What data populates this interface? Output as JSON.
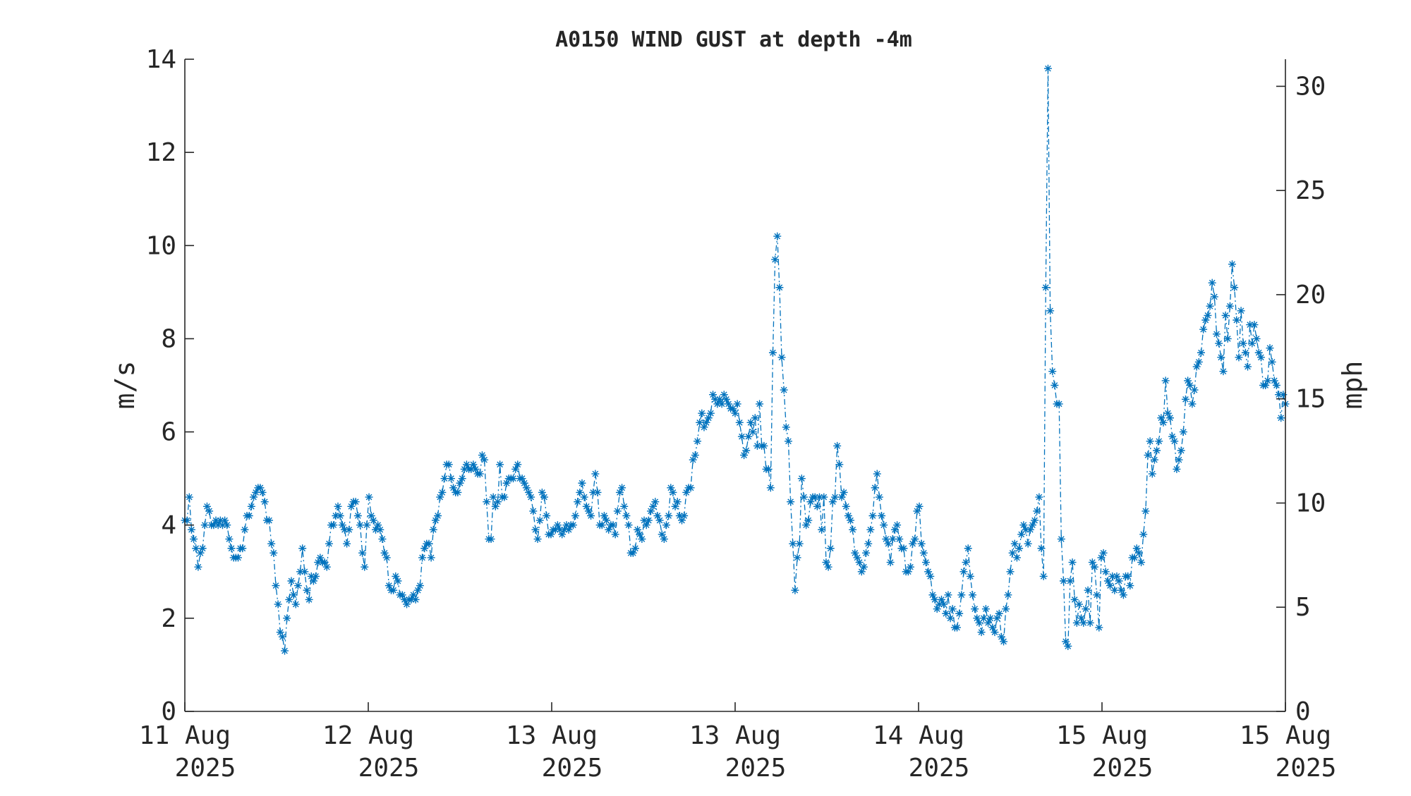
{
  "chart_data": {
    "type": "line",
    "title": "A0150 WIND GUST at depth -4m",
    "ylabel": "m/s",
    "ylabel_right": "mph",
    "ylim": [
      0,
      14
    ],
    "yticks": [
      0,
      2,
      4,
      6,
      8,
      10,
      12,
      14
    ],
    "y2lim": [
      0,
      31.3
    ],
    "y2ticks": [
      0,
      5,
      10,
      15,
      20,
      25,
      30
    ],
    "x_range": [
      "2025-08-11 00:00",
      "2025-08-15 00:00"
    ],
    "xtick_labels": [
      [
        "11 Aug",
        "2025"
      ],
      [
        "12 Aug",
        "2025"
      ],
      [
        "13 Aug",
        "2025"
      ],
      [
        "13 Aug",
        "2025"
      ],
      [
        "14 Aug",
        "2025"
      ],
      [
        "15 Aug",
        "2025"
      ],
      [
        "15 Aug",
        "2025"
      ]
    ],
    "grid": false,
    "marker": "asterisk",
    "line_style": "dash-dot",
    "color": "#0072BD",
    "series": [
      {
        "values": [
          4.1,
          4.1,
          4.6,
          3.9,
          3.7,
          3.5,
          3.1,
          3.4,
          3.5,
          4.0,
          4.4,
          4.3,
          4.0,
          4.0,
          4.1,
          4.0,
          4.1,
          4.0,
          4.1,
          4.0,
          3.7,
          3.5,
          3.3,
          3.3,
          3.3,
          3.5,
          3.5,
          3.9,
          4.2,
          4.2,
          4.4,
          4.6,
          4.7,
          4.8,
          4.8,
          4.7,
          4.5,
          4.1,
          4.1,
          3.6,
          3.4,
          2.7,
          2.3,
          1.7,
          1.6,
          1.3,
          2.0,
          2.4,
          2.8,
          2.5,
          2.3,
          2.7,
          3.0,
          3.5,
          3.0,
          2.6,
          2.4,
          2.9,
          2.8,
          2.9,
          3.2,
          3.3,
          3.2,
          3.2,
          3.1,
          3.6,
          4.0,
          4.0,
          4.2,
          4.4,
          4.2,
          4.0,
          3.9,
          3.6,
          3.9,
          4.4,
          4.5,
          4.5,
          4.2,
          4.0,
          3.4,
          3.1,
          4.0,
          4.6,
          4.2,
          4.1,
          3.9,
          4.0,
          3.9,
          3.7,
          3.4,
          3.3,
          2.7,
          2.6,
          2.6,
          2.9,
          2.8,
          2.5,
          2.5,
          2.4,
          2.3,
          2.4,
          2.4,
          2.5,
          2.4,
          2.6,
          2.7,
          3.3,
          3.5,
          3.6,
          3.6,
          3.3,
          3.9,
          4.1,
          4.2,
          4.6,
          4.7,
          5.0,
          5.3,
          5.3,
          5.0,
          4.8,
          4.7,
          4.7,
          4.9,
          5.0,
          5.2,
          5.3,
          5.2,
          5.2,
          5.3,
          5.2,
          5.1,
          5.1,
          5.5,
          5.4,
          4.5,
          3.7,
          3.7,
          4.6,
          4.4,
          4.5,
          5.3,
          4.6,
          4.6,
          4.9,
          5.0,
          5.0,
          5.0,
          5.2,
          5.3,
          5.0,
          5.0,
          4.9,
          4.8,
          4.7,
          4.6,
          4.3,
          3.9,
          3.7,
          4.1,
          4.7,
          4.6,
          4.2,
          3.8,
          3.8,
          3.9,
          3.9,
          4.0,
          3.9,
          3.8,
          3.9,
          4.0,
          3.9,
          4.0,
          4.0,
          4.2,
          4.5,
          4.7,
          4.9,
          4.6,
          4.4,
          4.3,
          4.2,
          4.7,
          5.1,
          4.7,
          4.0,
          4.0,
          4.2,
          4.1,
          3.9,
          4.0,
          4.0,
          3.8,
          4.3,
          4.7,
          4.8,
          4.4,
          4.2,
          4.0,
          3.4,
          3.4,
          3.5,
          3.9,
          3.8,
          3.7,
          4.1,
          4.0,
          4.1,
          4.3,
          4.4,
          4.5,
          4.2,
          4.1,
          3.8,
          3.7,
          4.0,
          4.2,
          4.8,
          4.7,
          4.4,
          4.5,
          4.2,
          4.1,
          4.2,
          4.7,
          4.8,
          4.8,
          5.4,
          5.5,
          5.8,
          6.2,
          6.4,
          6.1,
          6.2,
          6.3,
          6.4,
          6.8,
          6.7,
          6.6,
          6.7,
          6.6,
          6.8,
          6.7,
          6.6,
          6.5,
          6.5,
          6.4,
          6.6,
          6.2,
          5.9,
          5.5,
          5.6,
          5.9,
          6.2,
          6.0,
          6.3,
          5.7,
          6.6,
          5.7,
          5.7,
          5.2,
          5.2,
          4.8,
          7.7,
          9.7,
          10.2,
          9.1,
          7.6,
          6.9,
          6.1,
          5.8,
          4.5,
          3.6,
          2.6,
          3.3,
          3.6,
          5.0,
          4.6,
          4.0,
          4.1,
          4.5,
          4.6,
          4.6,
          4.4,
          4.6,
          3.9,
          4.6,
          3.2,
          3.1,
          3.5,
          4.5,
          4.6,
          5.7,
          5.3,
          4.6,
          4.7,
          4.4,
          4.2,
          4.1,
          3.9,
          3.4,
          3.3,
          3.2,
          3.0,
          3.1,
          3.4,
          3.6,
          3.9,
          4.2,
          4.8,
          5.1,
          4.6,
          4.2,
          4.0,
          3.7,
          3.6,
          3.2,
          3.7,
          3.9,
          4.0,
          3.7,
          3.5,
          3.5,
          3.0,
          3.0,
          3.1,
          3.6,
          3.7,
          4.3,
          4.4,
          3.6,
          3.4,
          3.2,
          3.0,
          2.9,
          2.5,
          2.4,
          2.2,
          2.3,
          2.4,
          2.3,
          2.1,
          2.5,
          2.0,
          2.2,
          1.8,
          1.8,
          2.1,
          2.5,
          3.0,
          3.2,
          3.5,
          2.9,
          2.5,
          2.2,
          2.0,
          1.9,
          1.7,
          2.0,
          2.2,
          1.9,
          2.0,
          1.8,
          1.7,
          2.0,
          2.1,
          1.6,
          1.5,
          2.2,
          2.5,
          3.0,
          3.4,
          3.6,
          3.3,
          3.5,
          3.8,
          4.0,
          3.9,
          3.6,
          3.9,
          4.0,
          4.1,
          4.3,
          4.6,
          3.5,
          2.9,
          9.1,
          13.8,
          8.6,
          7.3,
          7.0,
          6.6,
          6.6,
          3.7,
          2.8,
          1.5,
          1.4,
          2.8,
          3.2,
          2.4,
          1.9,
          2.3,
          2.0,
          1.9,
          2.2,
          2.6,
          1.9,
          3.2,
          3.1,
          2.5,
          1.8,
          3.3,
          3.4,
          3.0,
          2.8,
          2.7,
          2.9,
          2.6,
          2.9,
          2.8,
          2.6,
          2.5,
          2.9,
          2.9,
          2.7,
          3.3,
          3.3,
          3.5,
          3.4,
          3.2,
          3.8,
          4.3,
          5.5,
          5.8,
          5.1,
          5.4,
          5.6,
          5.8,
          6.3,
          6.2,
          7.1,
          6.4,
          6.3,
          5.9,
          5.8,
          5.2,
          5.4,
          5.6,
          6.0,
          6.7,
          7.1,
          7.0,
          6.6,
          6.9,
          7.4,
          7.5,
          7.7,
          8.2,
          8.4,
          8.5,
          8.7,
          9.2,
          8.9,
          8.1,
          7.9,
          7.6,
          7.3,
          8.5,
          8.0,
          8.7,
          9.6,
          9.1,
          8.4,
          7.6,
          8.6,
          7.9,
          7.7,
          7.4,
          8.3,
          7.9,
          8.3,
          8.0,
          7.7,
          7.6,
          7.0,
          7.0,
          7.1,
          7.8,
          7.5,
          7.1,
          7.0,
          6.8,
          6.3,
          6.8,
          6.6
        ]
      }
    ]
  }
}
